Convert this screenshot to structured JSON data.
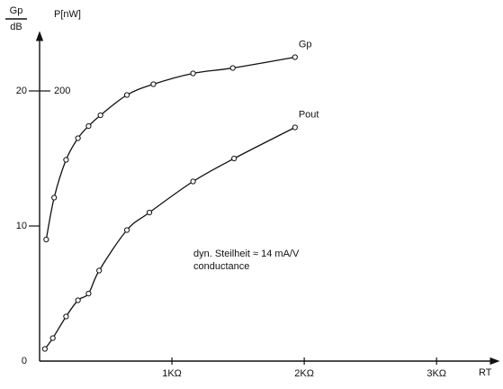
{
  "chart_data": {
    "type": "line",
    "y_label_top": "Gp",
    "y_label_bottom": "dB",
    "y2_label": "P[nW]",
    "x_label": "RT",
    "annotation_1": "dyn. Steilheit ≈ 14 mA/V",
    "annotation_2": "conductance",
    "xlim": [
      0,
      3.4
    ],
    "xticks": [
      {
        "value": 1,
        "label": "1KΩ"
      },
      {
        "value": 2,
        "label": "2KΩ"
      },
      {
        "value": 3,
        "label": "3KΩ"
      }
    ],
    "ylim": [
      0,
      24
    ],
    "yticks": [
      0,
      10,
      20
    ],
    "y2lim": [
      0,
      240
    ],
    "y2ticks": [
      200
    ],
    "series": [
      {
        "name": "Gp",
        "color": "#111111",
        "x": [
          0.05,
          0.11,
          0.2,
          0.29,
          0.37,
          0.46,
          0.66,
          0.86,
          1.16,
          1.46,
          1.93
        ],
        "values": [
          9.0,
          12.1,
          14.9,
          16.5,
          17.4,
          18.2,
          19.7,
          20.5,
          21.3,
          21.7,
          22.5
        ]
      },
      {
        "name": "Pout",
        "color": "#111111",
        "axis": "y2",
        "x": [
          0.04,
          0.1,
          0.2,
          0.29,
          0.37,
          0.45,
          0.66,
          0.83,
          1.16,
          1.47,
          1.93
        ],
        "values": [
          9,
          17,
          33,
          45,
          50,
          67,
          97,
          110,
          133,
          150,
          173
        ]
      }
    ]
  }
}
